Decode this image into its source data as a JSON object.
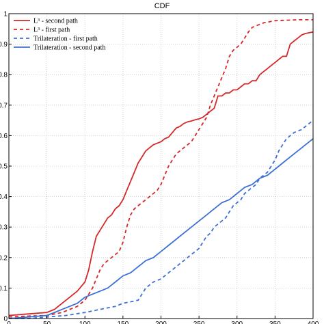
{
  "chart_data": {
    "type": "line",
    "title": "CDF",
    "xlabel": "",
    "ylabel": "",
    "xlim": [
      0,
      400
    ],
    "ylim": [
      0,
      1
    ],
    "x_ticks": [
      "0",
      "50",
      "100",
      "150",
      "200",
      "250",
      "300",
      "350",
      "400"
    ],
    "y_ticks": [
      "0",
      "0.1",
      "0.2",
      "0.3",
      "0.4",
      "0.5",
      "0.6",
      "0.7",
      "0.8",
      "0.9",
      "1"
    ],
    "grid": true,
    "legend_position": "top-left",
    "series": [
      {
        "name": "L³ - second path",
        "color": "#d62728",
        "style": "solid",
        "points": [
          [
            0,
            0.01
          ],
          [
            25,
            0.015
          ],
          [
            50,
            0.02
          ],
          [
            60,
            0.03
          ],
          [
            70,
            0.05
          ],
          [
            80,
            0.07
          ],
          [
            90,
            0.09
          ],
          [
            100,
            0.12
          ],
          [
            105,
            0.16
          ],
          [
            110,
            0.22
          ],
          [
            115,
            0.27
          ],
          [
            120,
            0.29
          ],
          [
            125,
            0.31
          ],
          [
            130,
            0.33
          ],
          [
            135,
            0.34
          ],
          [
            140,
            0.36
          ],
          [
            145,
            0.37
          ],
          [
            150,
            0.39
          ],
          [
            155,
            0.42
          ],
          [
            160,
            0.45
          ],
          [
            165,
            0.48
          ],
          [
            170,
            0.51
          ],
          [
            175,
            0.53
          ],
          [
            180,
            0.55
          ],
          [
            185,
            0.56
          ],
          [
            190,
            0.57
          ],
          [
            195,
            0.575
          ],
          [
            200,
            0.58
          ],
          [
            205,
            0.59
          ],
          [
            210,
            0.595
          ],
          [
            215,
            0.61
          ],
          [
            220,
            0.625
          ],
          [
            225,
            0.63
          ],
          [
            230,
            0.64
          ],
          [
            235,
            0.645
          ],
          [
            240,
            0.648
          ],
          [
            245,
            0.652
          ],
          [
            250,
            0.655
          ],
          [
            255,
            0.66
          ],
          [
            260,
            0.67
          ],
          [
            265,
            0.68
          ],
          [
            270,
            0.69
          ],
          [
            275,
            0.73
          ],
          [
            280,
            0.73
          ],
          [
            285,
            0.74
          ],
          [
            290,
            0.74
          ],
          [
            295,
            0.75
          ],
          [
            300,
            0.75
          ],
          [
            305,
            0.76
          ],
          [
            310,
            0.77
          ],
          [
            315,
            0.77
          ],
          [
            320,
            0.78
          ],
          [
            325,
            0.78
          ],
          [
            330,
            0.8
          ],
          [
            335,
            0.81
          ],
          [
            340,
            0.82
          ],
          [
            345,
            0.83
          ],
          [
            350,
            0.84
          ],
          [
            355,
            0.85
          ],
          [
            360,
            0.86
          ],
          [
            365,
            0.86
          ],
          [
            370,
            0.9
          ],
          [
            375,
            0.91
          ],
          [
            380,
            0.92
          ],
          [
            385,
            0.93
          ],
          [
            390,
            0.935
          ],
          [
            400,
            0.94
          ]
        ]
      },
      {
        "name": "L³ - first path",
        "color": "#d62728",
        "style": "dashed",
        "points": [
          [
            0,
            0.005
          ],
          [
            25,
            0.008
          ],
          [
            50,
            0.01
          ],
          [
            60,
            0.015
          ],
          [
            70,
            0.02
          ],
          [
            80,
            0.03
          ],
          [
            90,
            0.04
          ],
          [
            100,
            0.06
          ],
          [
            105,
            0.08
          ],
          [
            110,
            0.1
          ],
          [
            115,
            0.13
          ],
          [
            120,
            0.16
          ],
          [
            125,
            0.18
          ],
          [
            130,
            0.19
          ],
          [
            135,
            0.2
          ],
          [
            140,
            0.21
          ],
          [
            145,
            0.22
          ],
          [
            150,
            0.25
          ],
          [
            155,
            0.3
          ],
          [
            160,
            0.34
          ],
          [
            165,
            0.36
          ],
          [
            170,
            0.37
          ],
          [
            175,
            0.38
          ],
          [
            180,
            0.39
          ],
          [
            185,
            0.4
          ],
          [
            190,
            0.41
          ],
          [
            195,
            0.42
          ],
          [
            200,
            0.44
          ],
          [
            205,
            0.47
          ],
          [
            210,
            0.5
          ],
          [
            215,
            0.52
          ],
          [
            220,
            0.54
          ],
          [
            225,
            0.55
          ],
          [
            230,
            0.56
          ],
          [
            235,
            0.57
          ],
          [
            240,
            0.58
          ],
          [
            245,
            0.6
          ],
          [
            250,
            0.62
          ],
          [
            255,
            0.64
          ],
          [
            260,
            0.66
          ],
          [
            265,
            0.7
          ],
          [
            270,
            0.73
          ],
          [
            275,
            0.76
          ],
          [
            280,
            0.79
          ],
          [
            285,
            0.82
          ],
          [
            290,
            0.86
          ],
          [
            295,
            0.88
          ],
          [
            300,
            0.89
          ],
          [
            305,
            0.9
          ],
          [
            310,
            0.92
          ],
          [
            315,
            0.94
          ],
          [
            320,
            0.955
          ],
          [
            325,
            0.96
          ],
          [
            330,
            0.965
          ],
          [
            335,
            0.97
          ],
          [
            340,
            0.972
          ],
          [
            345,
            0.975
          ],
          [
            350,
            0.977
          ],
          [
            360,
            0.978
          ],
          [
            370,
            0.979
          ],
          [
            380,
            0.98
          ],
          [
            390,
            0.98
          ],
          [
            400,
            0.98
          ]
        ]
      },
      {
        "name": "Trilateration - first path",
        "color": "#3b6fd6",
        "style": "dashed",
        "points": [
          [
            0,
            0.0
          ],
          [
            25,
            0.0
          ],
          [
            50,
            0.005
          ],
          [
            75,
            0.01
          ],
          [
            100,
            0.02
          ],
          [
            110,
            0.025
          ],
          [
            120,
            0.03
          ],
          [
            130,
            0.035
          ],
          [
            140,
            0.04
          ],
          [
            150,
            0.05
          ],
          [
            160,
            0.055
          ],
          [
            170,
            0.06
          ],
          [
            175,
            0.08
          ],
          [
            180,
            0.1
          ],
          [
            185,
            0.11
          ],
          [
            190,
            0.12
          ],
          [
            195,
            0.125
          ],
          [
            200,
            0.13
          ],
          [
            205,
            0.14
          ],
          [
            210,
            0.15
          ],
          [
            215,
            0.16
          ],
          [
            220,
            0.17
          ],
          [
            225,
            0.18
          ],
          [
            230,
            0.19
          ],
          [
            235,
            0.2
          ],
          [
            240,
            0.21
          ],
          [
            245,
            0.22
          ],
          [
            250,
            0.23
          ],
          [
            255,
            0.25
          ],
          [
            260,
            0.27
          ],
          [
            265,
            0.28
          ],
          [
            270,
            0.3
          ],
          [
            275,
            0.31
          ],
          [
            280,
            0.32
          ],
          [
            285,
            0.33
          ],
          [
            290,
            0.35
          ],
          [
            295,
            0.37
          ],
          [
            300,
            0.38
          ],
          [
            305,
            0.39
          ],
          [
            310,
            0.41
          ],
          [
            315,
            0.42
          ],
          [
            320,
            0.43
          ],
          [
            325,
            0.44
          ],
          [
            330,
            0.46
          ],
          [
            335,
            0.47
          ],
          [
            340,
            0.48
          ],
          [
            345,
            0.5
          ],
          [
            350,
            0.52
          ],
          [
            355,
            0.55
          ],
          [
            360,
            0.57
          ],
          [
            365,
            0.59
          ],
          [
            370,
            0.6
          ],
          [
            375,
            0.61
          ],
          [
            380,
            0.615
          ],
          [
            385,
            0.62
          ],
          [
            390,
            0.63
          ],
          [
            395,
            0.64
          ],
          [
            400,
            0.65
          ]
        ]
      },
      {
        "name": "Trilateration - second path",
        "color": "#3b6fd6",
        "style": "solid",
        "points": [
          [
            0,
            0.0
          ],
          [
            25,
            0.005
          ],
          [
            50,
            0.01
          ],
          [
            60,
            0.02
          ],
          [
            70,
            0.03
          ],
          [
            80,
            0.04
          ],
          [
            90,
            0.05
          ],
          [
            100,
            0.07
          ],
          [
            110,
            0.08
          ],
          [
            120,
            0.09
          ],
          [
            130,
            0.1
          ],
          [
            140,
            0.12
          ],
          [
            150,
            0.14
          ],
          [
            160,
            0.15
          ],
          [
            170,
            0.17
          ],
          [
            180,
            0.19
          ],
          [
            190,
            0.2
          ],
          [
            200,
            0.22
          ],
          [
            210,
            0.24
          ],
          [
            220,
            0.26
          ],
          [
            230,
            0.28
          ],
          [
            240,
            0.3
          ],
          [
            250,
            0.32
          ],
          [
            260,
            0.34
          ],
          [
            270,
            0.36
          ],
          [
            280,
            0.38
          ],
          [
            290,
            0.39
          ],
          [
            300,
            0.41
          ],
          [
            310,
            0.43
          ],
          [
            320,
            0.44
          ],
          [
            330,
            0.46
          ],
          [
            340,
            0.47
          ],
          [
            350,
            0.49
          ],
          [
            360,
            0.51
          ],
          [
            370,
            0.53
          ],
          [
            380,
            0.55
          ],
          [
            390,
            0.57
          ],
          [
            400,
            0.59
          ]
        ]
      }
    ]
  }
}
